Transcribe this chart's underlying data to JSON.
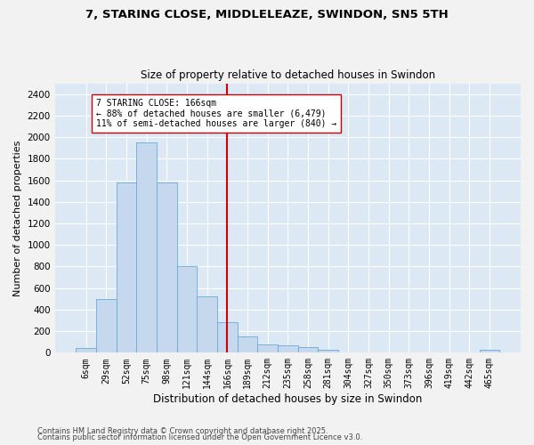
{
  "title_line1": "7, STARING CLOSE, MIDDLELEAZE, SWINDON, SN5 5TH",
  "title_line2": "Size of property relative to detached houses in Swindon",
  "xlabel": "Distribution of detached houses by size in Swindon",
  "ylabel": "Number of detached properties",
  "bar_color": "#c5d8ee",
  "bar_edge_color": "#6aaad4",
  "background_color": "#dce9f5",
  "grid_color": "#ffffff",
  "annotation_text": "7 STARING CLOSE: 166sqm\n← 88% of detached houses are smaller (6,479)\n11% of semi-detached houses are larger (840) →",
  "vline_color": "#cc0000",
  "categories": [
    "6sqm",
    "29sqm",
    "52sqm",
    "75sqm",
    "98sqm",
    "121sqm",
    "144sqm",
    "166sqm",
    "189sqm",
    "212sqm",
    "235sqm",
    "258sqm",
    "281sqm",
    "304sqm",
    "327sqm",
    "350sqm",
    "373sqm",
    "396sqm",
    "419sqm",
    "442sqm",
    "465sqm"
  ],
  "bar_values": [
    40,
    500,
    1580,
    1950,
    1580,
    800,
    520,
    280,
    150,
    80,
    70,
    50,
    30,
    0,
    0,
    0,
    0,
    0,
    0,
    0,
    30
  ],
  "ylim": [
    0,
    2500
  ],
  "yticks": [
    0,
    200,
    400,
    600,
    800,
    1000,
    1200,
    1400,
    1600,
    1800,
    2000,
    2200,
    2400
  ],
  "footnote1": "Contains HM Land Registry data © Crown copyright and database right 2025.",
  "footnote2": "Contains public sector information licensed under the Open Government Licence v3.0.",
  "fig_bg": "#f2f2f2"
}
